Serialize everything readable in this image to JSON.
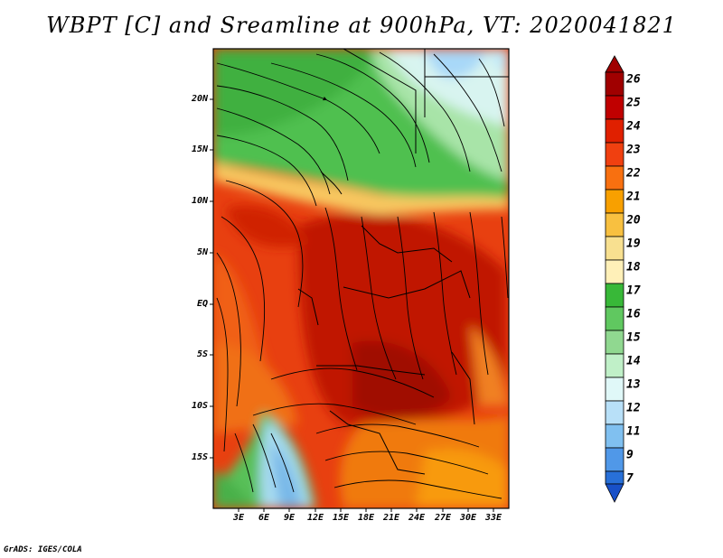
{
  "title": "WBPT [C] and Sreamline at 900hPa, VT: 2020041821",
  "credit": "GrADS: IGES/COLA",
  "map": {
    "lat_labels": [
      "20N",
      "15N",
      "10N",
      "5N",
      "EQ",
      "5S",
      "10S",
      "15S"
    ],
    "lon_labels": [
      "3E",
      "6E",
      "9E",
      "12E",
      "15E",
      "18E",
      "21E",
      "24E",
      "27E",
      "30E",
      "33E"
    ]
  },
  "colorbar": {
    "labels": [
      "26",
      "25",
      "24",
      "23",
      "22",
      "21",
      "20",
      "19",
      "18",
      "17",
      "16",
      "15",
      "14",
      "13",
      "12",
      "11",
      "9",
      "7"
    ],
    "colors": [
      "#a00000",
      "#c00000",
      "#e02000",
      "#f04010",
      "#f87010",
      "#f8a000",
      "#f8c040",
      "#f8e090",
      "#fff0b8",
      "#38b838",
      "#60c860",
      "#90d890",
      "#c0f0c8",
      "#e0f8f8",
      "#b8e0f8",
      "#80c0f0",
      "#5098e8",
      "#2870d8",
      "#1850c8"
    ]
  }
}
